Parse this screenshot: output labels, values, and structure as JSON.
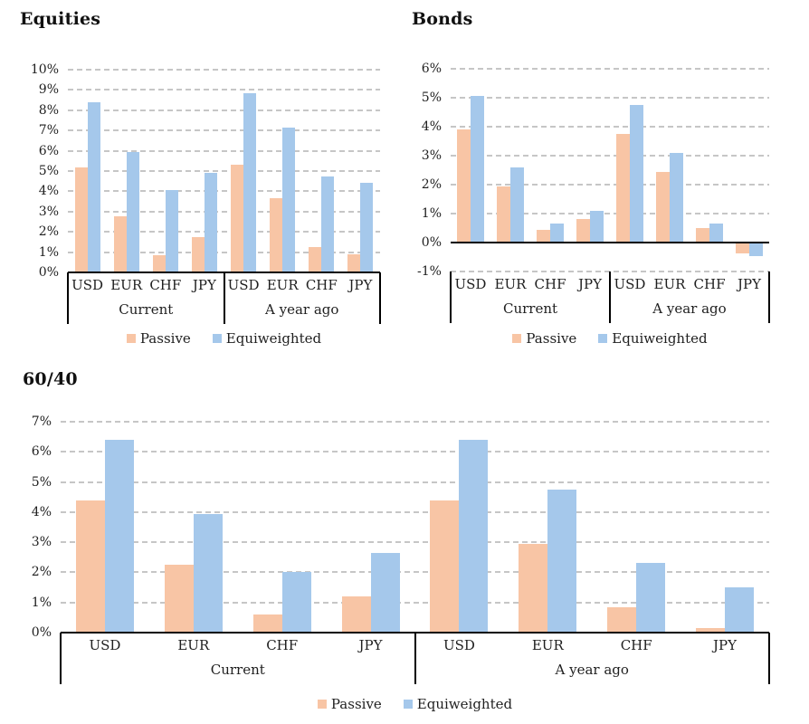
{
  "colors": {
    "passive": "#F8C5A5",
    "equiweighted": "#A5C8EB",
    "gridline": "#C6C6C6",
    "axis": "#000000",
    "text": "#1F1F1F",
    "background": "#FFFFFF"
  },
  "legend": {
    "passive_label": "Passive",
    "equiweighted_label": "Equiweighted"
  },
  "chart_data": [
    {
      "id": "equities",
      "type": "bar",
      "title": "Equities",
      "groups": [
        "Current",
        "A year ago"
      ],
      "categories": [
        "USD",
        "EUR",
        "CHF",
        "JPY",
        "USD",
        "EUR",
        "CHF",
        "JPY"
      ],
      "series": [
        {
          "name": "Passive",
          "color": "#F8C5A5",
          "values": [
            5.2,
            2.75,
            0.85,
            1.75,
            5.3,
            3.65,
            1.25,
            0.9
          ]
        },
        {
          "name": "Equiweighted",
          "color": "#A5C8EB",
          "values": [
            8.4,
            5.95,
            4.05,
            4.9,
            8.85,
            7.15,
            4.75,
            4.4
          ]
        }
      ],
      "ylabel": "",
      "xlabel": "",
      "ylim": [
        0,
        10
      ],
      "ytick_labels": [
        "10%",
        "9%",
        "8%",
        "7%",
        "6%",
        "5%",
        "4%",
        "3%",
        "2%",
        "1%",
        "0%"
      ],
      "grid": "dashed-horizontal",
      "legend_position": "bottom"
    },
    {
      "id": "bonds",
      "type": "bar",
      "title": "Bonds",
      "groups": [
        "Current",
        "A year ago"
      ],
      "categories": [
        "USD",
        "EUR",
        "CHF",
        "JPY",
        "USD",
        "EUR",
        "CHF",
        "JPY"
      ],
      "series": [
        {
          "name": "Passive",
          "color": "#F8C5A5",
          "values": [
            3.9,
            1.95,
            0.45,
            0.8,
            3.75,
            2.45,
            0.5,
            -0.35
          ]
        },
        {
          "name": "Equiweighted",
          "color": "#A5C8EB",
          "values": [
            5.05,
            2.6,
            0.65,
            1.1,
            4.75,
            3.1,
            0.65,
            -0.45
          ]
        }
      ],
      "ylabel": "",
      "xlabel": "",
      "ylim": [
        -1,
        6
      ],
      "ytick_labels": [
        "6%",
        "5%",
        "4%",
        "3%",
        "2%",
        "1%",
        "0%",
        "-1%"
      ],
      "grid": "dashed-horizontal",
      "legend_position": "bottom"
    },
    {
      "id": "sixtyforty",
      "type": "bar",
      "title": "60/40",
      "groups": [
        "Current",
        "A year ago"
      ],
      "categories": [
        "USD",
        "EUR",
        "CHF",
        "JPY",
        "USD",
        "EUR",
        "CHF",
        "JPY"
      ],
      "series": [
        {
          "name": "Passive",
          "color": "#F8C5A5",
          "values": [
            4.4,
            2.25,
            0.6,
            1.2,
            4.4,
            2.95,
            0.85,
            0.15
          ]
        },
        {
          "name": "Equiweighted",
          "color": "#A5C8EB",
          "values": [
            6.4,
            3.95,
            2.0,
            2.65,
            6.4,
            4.75,
            2.3,
            1.5
          ]
        }
      ],
      "ylabel": "",
      "xlabel": "",
      "ylim": [
        0,
        7
      ],
      "ytick_labels": [
        "7%",
        "6%",
        "5%",
        "4%",
        "3%",
        "2%",
        "1%",
        "0%"
      ],
      "grid": "dashed-horizontal",
      "legend_position": "bottom"
    }
  ]
}
